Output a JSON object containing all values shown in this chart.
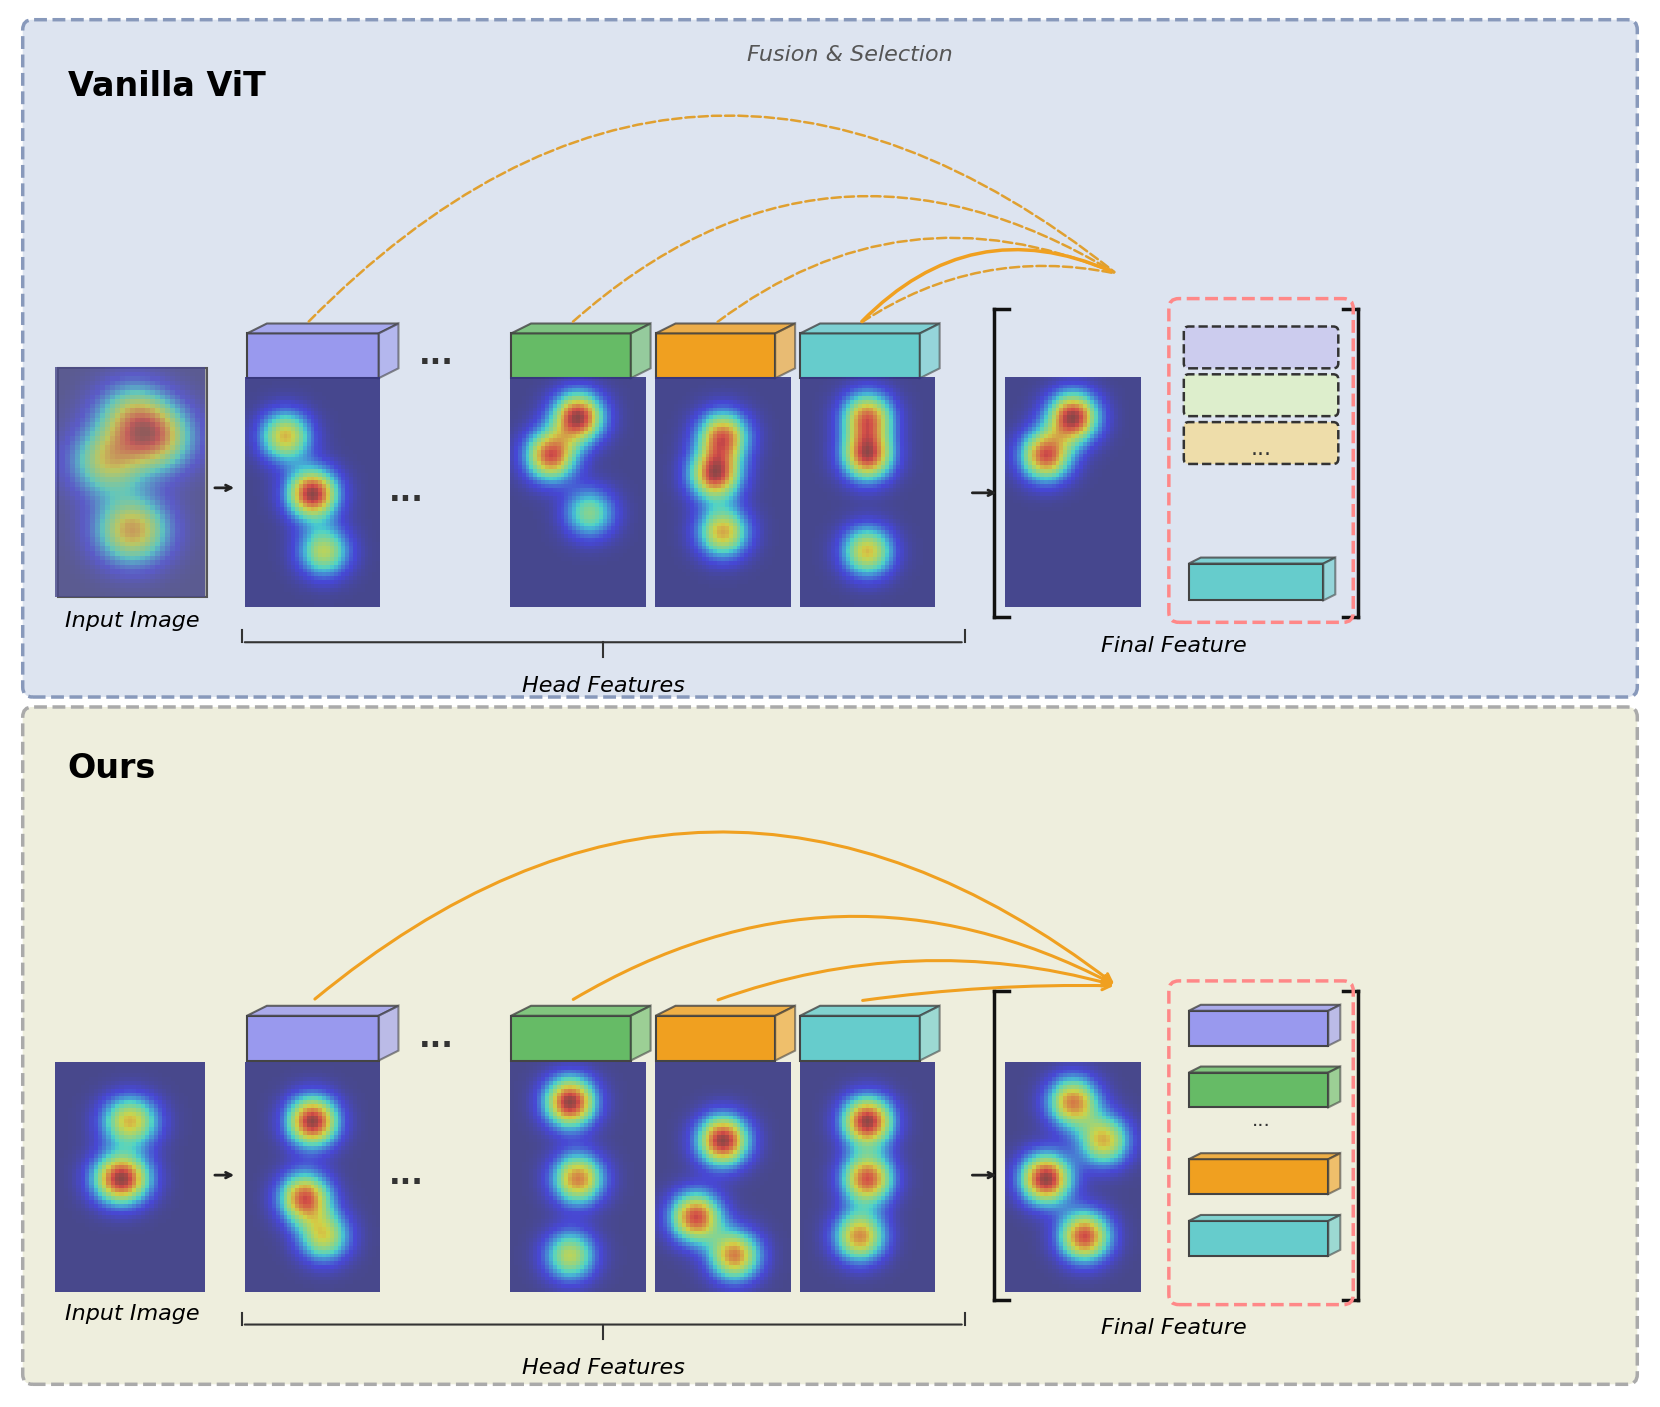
{
  "top_panel_bg": "#dde4f0",
  "bottom_panel_bg": "#eeeedd",
  "top_title": "Vanilla ViT",
  "bottom_title": "Ours",
  "fusion_label": "Fusion & Selection",
  "head_features_label": "Head Features",
  "input_image_label": "Input Image",
  "final_feature_label": "Final Feature",
  "top_block_colors": [
    "#9999ee",
    "#66bb66",
    "#f0a020",
    "#66cccc"
  ],
  "bottom_block_colors": [
    "#9999ee",
    "#66bb66",
    "#f0a020",
    "#66cccc"
  ],
  "top_feature_colors": [
    "#ccccee",
    "#ddeecc",
    "#eeddaa"
  ],
  "bottom_feature_colors": [
    "#9999ee",
    "#66bb66",
    "#f0a020",
    "#66cccc"
  ],
  "orange_color": "#f0a020",
  "arrow_color": "#333333",
  "pink_dashed_color": "#ff8888",
  "black_dashed_color": "#333333",
  "bracket_color": "#111111",
  "outer_border_top": "#8899bb",
  "outer_border_bottom": "#aaaaaa",
  "title_fontsize": 22,
  "label_fontsize": 16,
  "italic_fontsize": 16
}
